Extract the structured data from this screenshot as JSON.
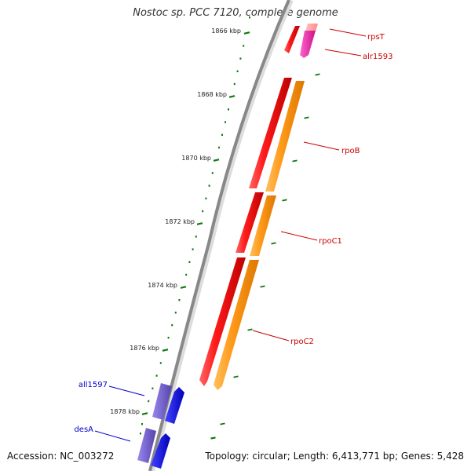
{
  "title": "Nostoc sp. PCC 7120, complete genome",
  "accession": "Accession: NC_003272",
  "topology": "Topology: circular; Length: 6,413,771 bp; Genes: 5,428",
  "scale_labels": [
    "1866 kbp",
    "1868 kbp",
    "1870 kbp",
    "1872 kbp",
    "1874 kbp",
    "1876 kbp",
    "1878 kbp"
  ],
  "genes": [
    {
      "name": "rpsT",
      "strand": "forward",
      "color": "#ff9999",
      "label_color": "#cc0000"
    },
    {
      "name": "alr1593",
      "strand": "forward",
      "color": "#e0309a",
      "label_color": "#cc0000"
    },
    {
      "name": "rpoB",
      "strand": "forward",
      "color": "#ff8800",
      "label_color": "#cc0000"
    },
    {
      "name": "rpoC1",
      "strand": "forward",
      "color": "#ff8800",
      "label_color": "#cc0000"
    },
    {
      "name": "rpoC2",
      "strand": "forward",
      "color": "#ff8800",
      "label_color": "#cc0000"
    },
    {
      "name": "all1597",
      "strand": "reverse",
      "color": "#0000ee",
      "label_color": "#0000cc"
    },
    {
      "name": "desA",
      "strand": "reverse",
      "color": "#0000ee",
      "label_color": "#0000cc"
    }
  ],
  "colors": {
    "backbone": "#888888",
    "tick": "#117711",
    "forward_ring": "#ee0000",
    "reverse_ring": "#6655cc"
  }
}
